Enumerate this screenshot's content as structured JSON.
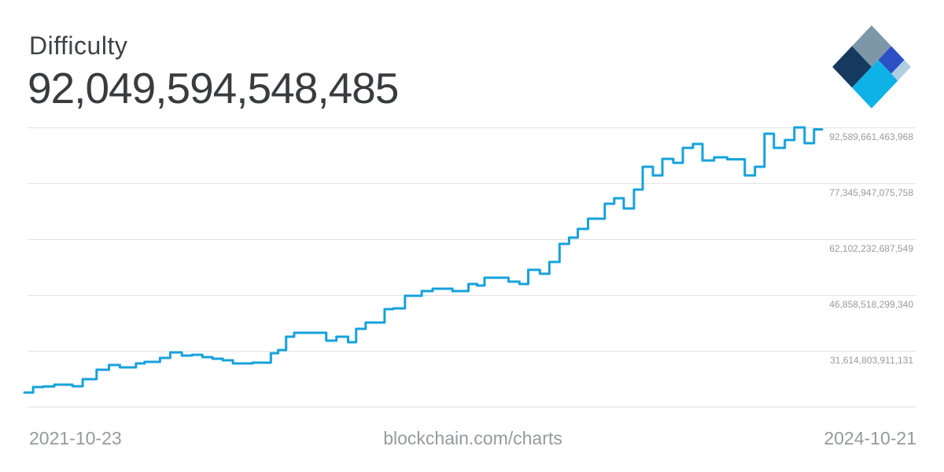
{
  "header": {
    "title": "Difficulty",
    "current_value_display": "92,049,594,548,485",
    "logo_colors": {
      "navy": "#16395F",
      "slate": "#7E97A8",
      "royal": "#2B50C4",
      "sky": "#AFCEE1",
      "cyan": "#0FB2E7"
    }
  },
  "footer": {
    "start_date": "2021-10-23",
    "watermark": "blockchain.com/charts",
    "end_date": "2024-10-21"
  },
  "chart_data": {
    "type": "line",
    "step_mode": "step-after",
    "title": "Difficulty",
    "subtitle_current_value": 92049594548485,
    "x_range": [
      "2021-10-23",
      "2024-10-21"
    ],
    "xlabel": "",
    "ylabel": "",
    "legend": "none",
    "grid": "horizontal-only",
    "line_color": "#16A2DB",
    "grid_color": "#E2E2E2",
    "y_axis": {
      "side": "right",
      "gridlines": [
        {
          "value": 92589661463968,
          "label": "92,589,661,463,968"
        },
        {
          "value": 77345947075758,
          "label": "77,345,947,075,758"
        },
        {
          "value": 62102232687549,
          "label": "62,102,232,687,549"
        },
        {
          "value": 46858518299340,
          "label": "46,858,518,299,340"
        },
        {
          "value": 31614803911131,
          "label": "31,614,803,911,131"
        },
        {
          "value": 16371089522921,
          "label": ""
        }
      ]
    },
    "points_value_unit": 1000000000000,
    "points_note": "Bitcoin network difficulty per ~2-week retarget; value in trillions (multiply by points_value_unit)",
    "points": [
      [
        "2021-10-23",
        20.24
      ],
      [
        "2021-11-04",
        21.74
      ],
      [
        "2021-11-18",
        21.9
      ],
      [
        "2021-12-03",
        22.38
      ],
      [
        "2021-12-28",
        21.95
      ],
      [
        "2022-01-11",
        23.89
      ],
      [
        "2022-01-30",
        26.46
      ],
      [
        "2022-02-16",
        27.75
      ],
      [
        "2022-03-03",
        27.11
      ],
      [
        "2022-03-25",
        28.18
      ],
      [
        "2022-04-06",
        28.61
      ],
      [
        "2022-04-27",
        29.68
      ],
      [
        "2022-05-11",
        31.19
      ],
      [
        "2022-05-27",
        30.33
      ],
      [
        "2022-06-10",
        30.54
      ],
      [
        "2022-06-24",
        29.9
      ],
      [
        "2022-07-08",
        29.47
      ],
      [
        "2022-07-22",
        29.04
      ],
      [
        "2022-08-05",
        28.18
      ],
      [
        "2022-09-01",
        28.4
      ],
      [
        "2022-09-26",
        30.97
      ],
      [
        "2022-10-06",
        31.83
      ],
      [
        "2022-10-17",
        35.48
      ],
      [
        "2022-10-28",
        36.55
      ],
      [
        "2022-12-11",
        34.41
      ],
      [
        "2022-12-25",
        35.48
      ],
      [
        "2023-01-10",
        33.98
      ],
      [
        "2023-01-21",
        37.63
      ],
      [
        "2023-02-03",
        39.35
      ],
      [
        "2023-03-01",
        43.0
      ],
      [
        "2023-03-13",
        43.21
      ],
      [
        "2023-03-29",
        46.65
      ],
      [
        "2023-04-21",
        47.93
      ],
      [
        "2023-05-06",
        48.58
      ],
      [
        "2023-06-02",
        47.93
      ],
      [
        "2023-06-24",
        49.86
      ],
      [
        "2023-07-06",
        49.43
      ],
      [
        "2023-07-16",
        51.58
      ],
      [
        "2023-08-18",
        50.51
      ],
      [
        "2023-09-02",
        49.86
      ],
      [
        "2023-09-14",
        53.72
      ],
      [
        "2023-09-30",
        52.65
      ],
      [
        "2023-10-13",
        55.87
      ],
      [
        "2023-10-27",
        60.81
      ],
      [
        "2023-11-09",
        62.53
      ],
      [
        "2023-11-21",
        64.89
      ],
      [
        "2023-12-05",
        67.68
      ],
      [
        "2023-12-28",
        71.76
      ],
      [
        "2024-01-10",
        73.26
      ],
      [
        "2024-01-23",
        70.47
      ],
      [
        "2024-02-06",
        75.62
      ],
      [
        "2024-02-18",
        81.85
      ],
      [
        "2024-03-03",
        79.49
      ],
      [
        "2024-03-16",
        84.0
      ],
      [
        "2024-03-31",
        82.92
      ],
      [
        "2024-04-13",
        87.01
      ],
      [
        "2024-04-27",
        88.08
      ],
      [
        "2024-05-10",
        83.57
      ],
      [
        "2024-05-26",
        84.43
      ],
      [
        "2024-06-13",
        83.9
      ],
      [
        "2024-07-07",
        79.49
      ],
      [
        "2024-07-21",
        81.85
      ],
      [
        "2024-08-03",
        90.87
      ],
      [
        "2024-08-16",
        87.01
      ],
      [
        "2024-08-31",
        89.16
      ],
      [
        "2024-09-13",
        92.59
      ],
      [
        "2024-09-27",
        88.3
      ],
      [
        "2024-10-10",
        92.05
      ]
    ]
  }
}
